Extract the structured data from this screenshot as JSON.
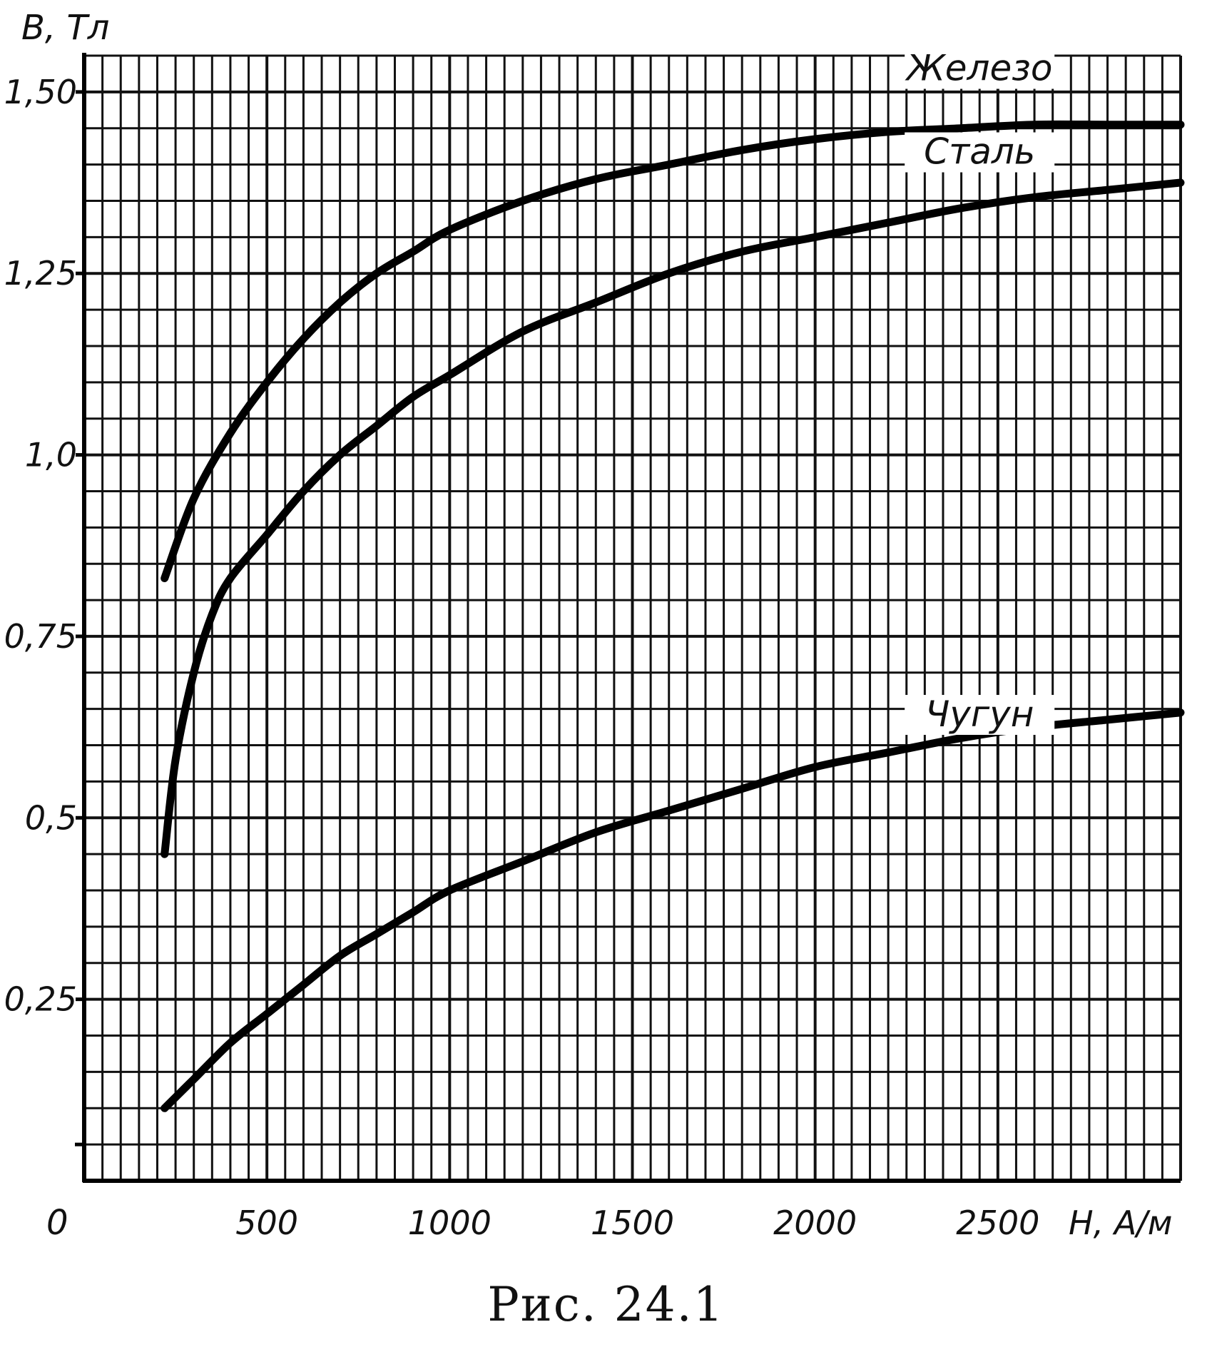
{
  "caption": "Рис. 24.1",
  "chart_data": {
    "type": "line",
    "xlabel": "H, A/м",
    "ylabel": "B, Тл",
    "xlim": [
      0,
      3000
    ],
    "ylim": [
      0,
      1.55
    ],
    "x_grid_step": 50,
    "y_grid_step": 0.05,
    "grid": true,
    "origin_label": "0",
    "x_ticks": [
      {
        "value": 500,
        "label": "500"
      },
      {
        "value": 1000,
        "label": "1000"
      },
      {
        "value": 1500,
        "label": "1500"
      },
      {
        "value": 2000,
        "label": "2000"
      },
      {
        "value": 2500,
        "label": "2500"
      }
    ],
    "y_ticks": [
      {
        "value": 0.25,
        "label": "0,25"
      },
      {
        "value": 0.5,
        "label": "0,5"
      },
      {
        "value": 0.75,
        "label": "0,75"
      },
      {
        "value": 1.0,
        "label": "1,0"
      },
      {
        "value": 1.25,
        "label": "1,25"
      },
      {
        "value": 1.5,
        "label": "1,50"
      }
    ],
    "series": [
      {
        "name": "Железо",
        "label_at": [
          2450,
          1.52
        ],
        "x": [
          220,
          300,
          400,
          500,
          600,
          700,
          800,
          900,
          1000,
          1200,
          1400,
          1600,
          1800,
          2000,
          2200,
          2400,
          2600,
          2800,
          3000
        ],
        "y": [
          0.83,
          0.94,
          1.03,
          1.1,
          1.16,
          1.21,
          1.25,
          1.28,
          1.31,
          1.35,
          1.38,
          1.4,
          1.42,
          1.435,
          1.445,
          1.45,
          1.455,
          1.455,
          1.455
        ]
      },
      {
        "name": "Сталь",
        "label_at": [
          2450,
          1.405
        ],
        "x": [
          220,
          250,
          300,
          350,
          400,
          500,
          600,
          700,
          800,
          900,
          1000,
          1200,
          1400,
          1600,
          1800,
          2000,
          2200,
          2400,
          2600,
          2800,
          3000
        ],
        "y": [
          0.45,
          0.58,
          0.7,
          0.78,
          0.83,
          0.89,
          0.95,
          1.0,
          1.04,
          1.08,
          1.11,
          1.17,
          1.21,
          1.25,
          1.28,
          1.3,
          1.32,
          1.34,
          1.355,
          1.365,
          1.375
        ]
      },
      {
        "name": "Чугун",
        "label_at": [
          2450,
          0.63
        ],
        "x": [
          220,
          300,
          400,
          500,
          600,
          700,
          800,
          900,
          1000,
          1200,
          1400,
          1600,
          1800,
          2000,
          2200,
          2400,
          2600,
          2800,
          3000
        ],
        "y": [
          0.1,
          0.14,
          0.19,
          0.23,
          0.27,
          0.31,
          0.34,
          0.37,
          0.4,
          0.44,
          0.48,
          0.51,
          0.54,
          0.57,
          0.59,
          0.61,
          0.625,
          0.635,
          0.645
        ]
      }
    ]
  }
}
